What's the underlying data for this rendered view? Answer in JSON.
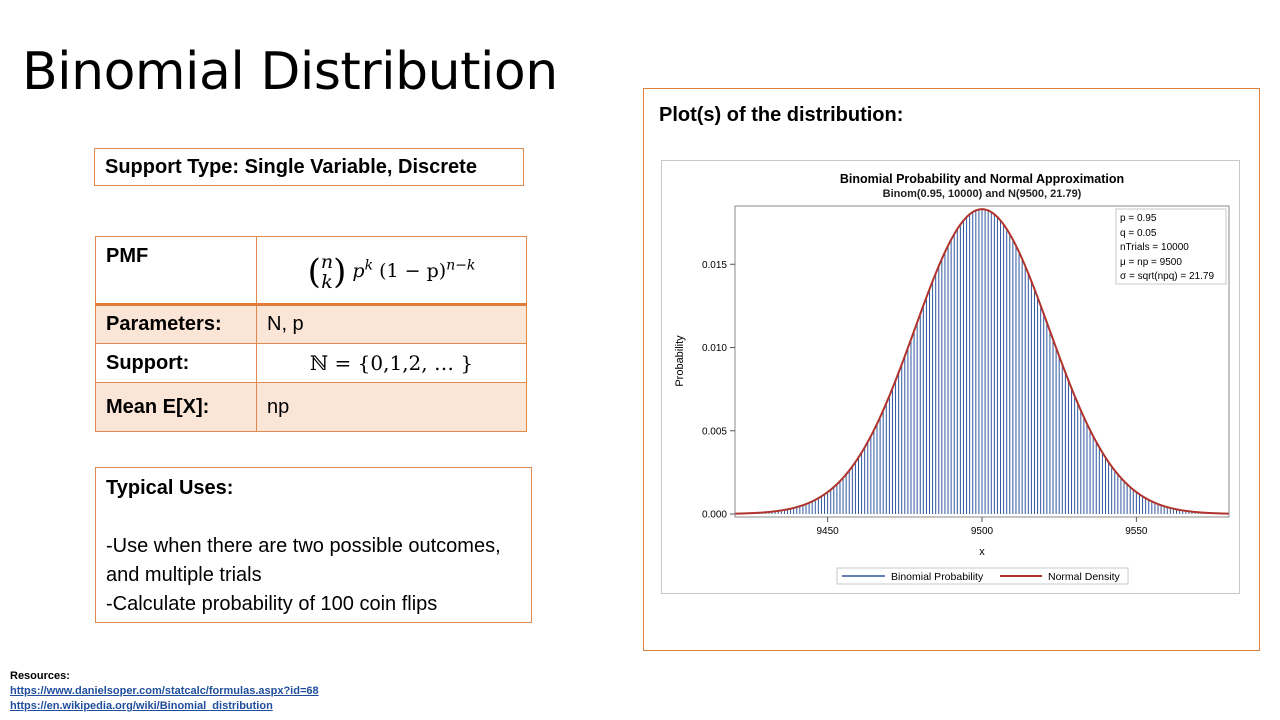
{
  "slide": {
    "title": "Binomial Distribution",
    "support_type": "Support Type: Single Variable, Discrete",
    "table": {
      "pmf_label": "PMF",
      "pmf_binom_top": "n",
      "pmf_binom_bottom": "k",
      "pmf_p": "p",
      "pmf_k": "k",
      "pmf_rest": "(1 − p)",
      "pmf_exp": "n−k",
      "params_label": "Parameters:",
      "params_value": "N, p",
      "support_label": "Support:",
      "support_value": "ℕ = {0,1,2, … }",
      "mean_label": "Mean E[X]:",
      "mean_value": "np"
    },
    "uses": {
      "title": "Typical Uses:",
      "line1": "-Use when there are two possible outcomes, and multiple trials",
      "line2": "-Calculate probability of 100 coin flips"
    },
    "plot_heading": "Plot(s) of the distribution:",
    "resources": {
      "label": "Resources:",
      "links": [
        "https://www.danielsoper.com/statcalc/formulas.aspx?id=68",
        "https://en.wikipedia.org/wiki/Binomial_distribution"
      ]
    }
  },
  "chart_data": {
    "type": "bar",
    "title": "Binomial Probability and Normal Approximation",
    "subtitle": "Binom(0.95, 10000) and N(9500, 21.79)",
    "xlabel": "x",
    "ylabel": "Probability",
    "xlim": [
      9420,
      9580
    ],
    "ylim": [
      0,
      0.0185
    ],
    "xticks": [
      9450,
      9500,
      9550
    ],
    "yticks": [
      "0.000",
      "0.005",
      "0.010",
      "0.015"
    ],
    "ytick_values": [
      0,
      0.005,
      0.01,
      0.015
    ],
    "mu": 9500,
    "sigma": 21.79,
    "grid": false,
    "legend_position": "bottom",
    "inset_position": "top-right",
    "inset": [
      "p = 0.95",
      "q = 0.05",
      "nTrials = 10000",
      "μ = np = 9500",
      "σ = sqrt(npq) = 21.79"
    ],
    "series": [
      {
        "name": "Binomial Probability",
        "color": "#2f57a0"
      },
      {
        "name": "Normal Density",
        "color": "#b0332c"
      }
    ]
  }
}
